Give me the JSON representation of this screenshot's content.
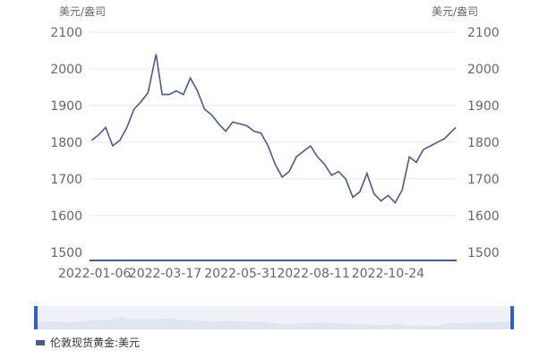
{
  "units": {
    "left": "美元/盎司",
    "right": "美元/盎司"
  },
  "legend": {
    "label": "伦敦现货黄金:美元"
  },
  "colors": {
    "line": "#4a5a8a",
    "axis": "#4a5a8a",
    "grid": "#e8e8e8",
    "brush": "#2f5fcf",
    "brush_bg": "#eef2f8"
  },
  "chart_data": {
    "type": "line",
    "title": "",
    "xlabel": "",
    "ylabel": "美元/盎司",
    "ylim": [
      1480,
      2100
    ],
    "yticks": [
      2100,
      2000,
      1900,
      1800,
      1700,
      1600,
      1500
    ],
    "xticks": [
      "2022-01-06",
      "2022-03-17",
      "2022-05-31",
      "2022-08-11",
      "2022-10-24"
    ],
    "grid": true,
    "legend_position": "bottom-left",
    "series": [
      {
        "name": "伦敦现货黄金:美元",
        "x": [
          "2022-01-03",
          "2022-01-10",
          "2022-01-17",
          "2022-01-24",
          "2022-01-31",
          "2022-02-07",
          "2022-02-14",
          "2022-02-21",
          "2022-02-28",
          "2022-03-08",
          "2022-03-14",
          "2022-03-21",
          "2022-03-28",
          "2022-04-04",
          "2022-04-11",
          "2022-04-18",
          "2022-04-25",
          "2022-05-02",
          "2022-05-09",
          "2022-05-16",
          "2022-05-23",
          "2022-05-30",
          "2022-06-06",
          "2022-06-13",
          "2022-06-20",
          "2022-06-27",
          "2022-07-04",
          "2022-07-11",
          "2022-07-18",
          "2022-07-25",
          "2022-08-01",
          "2022-08-08",
          "2022-08-15",
          "2022-08-22",
          "2022-08-29",
          "2022-09-05",
          "2022-09-12",
          "2022-09-19",
          "2022-09-26",
          "2022-10-03",
          "2022-10-10",
          "2022-10-17",
          "2022-10-24",
          "2022-10-31",
          "2022-11-07",
          "2022-11-14",
          "2022-11-21",
          "2022-11-28",
          "2022-12-05",
          "2022-12-12",
          "2022-12-19",
          "2022-12-30"
        ],
        "values": [
          1805,
          1820,
          1840,
          1790,
          1805,
          1840,
          1890,
          1910,
          1935,
          2040,
          1930,
          1930,
          1940,
          1930,
          1975,
          1940,
          1890,
          1875,
          1850,
          1830,
          1855,
          1850,
          1845,
          1830,
          1825,
          1790,
          1740,
          1705,
          1720,
          1760,
          1775,
          1790,
          1760,
          1740,
          1710,
          1720,
          1700,
          1650,
          1665,
          1715,
          1660,
          1640,
          1655,
          1635,
          1670,
          1760,
          1745,
          1780,
          1790,
          1800,
          1810,
          1840
        ]
      }
    ]
  }
}
